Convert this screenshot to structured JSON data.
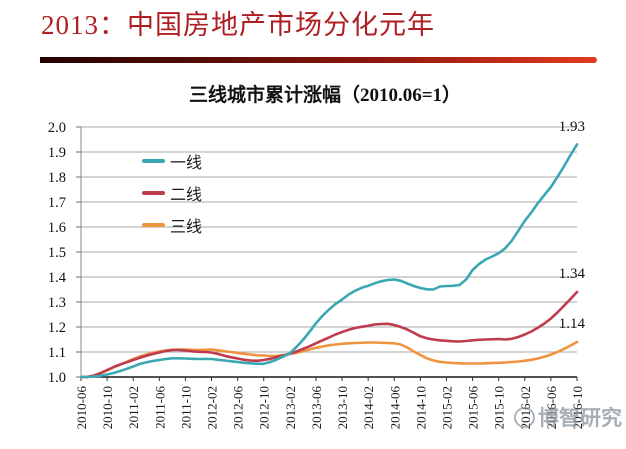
{
  "page": {
    "title": "2013：中国房地产市场分化元年",
    "title_color": "#AF1E23",
    "divider_gradient": [
      "#230101",
      "#8C170D",
      "#E03D1F"
    ]
  },
  "chart_data": {
    "type": "line",
    "title": "三线城市累计涨幅（2010.06=1）",
    "x_unit": "monthly",
    "x_start": "2010-06",
    "x_end": "2016-10",
    "x_tick_labels": [
      "2010-06",
      "2010-10",
      "2011-02",
      "2011-06",
      "2011-10",
      "2012-02",
      "2012-06",
      "2012-10",
      "2013-02",
      "2013-06",
      "2013-10",
      "2014-02",
      "2014-06",
      "2014-10",
      "2015-02",
      "2015-06",
      "2015-10",
      "2016-02",
      "2016-06",
      "2016-10"
    ],
    "y_ticks": [
      "1.0",
      "1.1",
      "1.2",
      "1.3",
      "1.4",
      "1.5",
      "1.6",
      "1.7",
      "1.8",
      "1.9",
      "2.0"
    ],
    "ylim": [
      1.0,
      2.0
    ],
    "grid": "horizontal",
    "legend_position": "inside-top-left",
    "watermark": "博智研究",
    "series": [
      {
        "name": "一线",
        "color": "#3BA7B4",
        "end_label": "1.93",
        "values": [
          1.0,
          1.0,
          1.002,
          1.005,
          1.01,
          1.016,
          1.024,
          1.033,
          1.042,
          1.052,
          1.059,
          1.064,
          1.068,
          1.072,
          1.075,
          1.075,
          1.074,
          1.073,
          1.072,
          1.072,
          1.072,
          1.069,
          1.066,
          1.063,
          1.06,
          1.057,
          1.055,
          1.053,
          1.053,
          1.06,
          1.07,
          1.082,
          1.095,
          1.12,
          1.148,
          1.18,
          1.215,
          1.245,
          1.27,
          1.292,
          1.31,
          1.33,
          1.345,
          1.357,
          1.365,
          1.375,
          1.383,
          1.388,
          1.39,
          1.385,
          1.374,
          1.364,
          1.356,
          1.351,
          1.35,
          1.362,
          1.364,
          1.365,
          1.368,
          1.39,
          1.428,
          1.452,
          1.47,
          1.482,
          1.495,
          1.515,
          1.545,
          1.585,
          1.625,
          1.658,
          1.695,
          1.728,
          1.76,
          1.8,
          1.842,
          1.888,
          1.93
        ]
      },
      {
        "name": "二线",
        "color": "#C13B4F",
        "end_label": "1.34",
        "values": [
          1.0,
          1.001,
          1.006,
          1.016,
          1.028,
          1.04,
          1.05,
          1.059,
          1.068,
          1.077,
          1.085,
          1.092,
          1.098,
          1.104,
          1.108,
          1.108,
          1.106,
          1.103,
          1.101,
          1.1,
          1.098,
          1.092,
          1.085,
          1.079,
          1.074,
          1.069,
          1.066,
          1.065,
          1.068,
          1.073,
          1.08,
          1.086,
          1.093,
          1.102,
          1.112,
          1.123,
          1.135,
          1.147,
          1.158,
          1.17,
          1.18,
          1.189,
          1.196,
          1.201,
          1.205,
          1.21,
          1.212,
          1.213,
          1.208,
          1.2,
          1.19,
          1.177,
          1.163,
          1.155,
          1.15,
          1.147,
          1.145,
          1.143,
          1.142,
          1.144,
          1.147,
          1.149,
          1.15,
          1.151,
          1.152,
          1.15,
          1.153,
          1.16,
          1.17,
          1.182,
          1.197,
          1.214,
          1.234,
          1.258,
          1.285,
          1.312,
          1.34
        ]
      },
      {
        "name": "三线",
        "color": "#EE9440",
        "end_label": "1.14",
        "values": [
          1.0,
          1.0,
          1.004,
          1.014,
          1.026,
          1.039,
          1.05,
          1.061,
          1.072,
          1.082,
          1.09,
          1.097,
          1.102,
          1.106,
          1.109,
          1.11,
          1.11,
          1.109,
          1.108,
          1.109,
          1.11,
          1.107,
          1.103,
          1.1,
          1.097,
          1.093,
          1.09,
          1.087,
          1.086,
          1.084,
          1.085,
          1.088,
          1.092,
          1.097,
          1.103,
          1.11,
          1.117,
          1.122,
          1.127,
          1.13,
          1.133,
          1.135,
          1.136,
          1.137,
          1.138,
          1.138,
          1.137,
          1.136,
          1.135,
          1.13,
          1.118,
          1.102,
          1.088,
          1.075,
          1.066,
          1.061,
          1.058,
          1.056,
          1.055,
          1.054,
          1.054,
          1.054,
          1.055,
          1.056,
          1.057,
          1.058,
          1.06,
          1.062,
          1.065,
          1.069,
          1.074,
          1.081,
          1.09,
          1.1,
          1.112,
          1.126,
          1.14
        ]
      }
    ]
  }
}
